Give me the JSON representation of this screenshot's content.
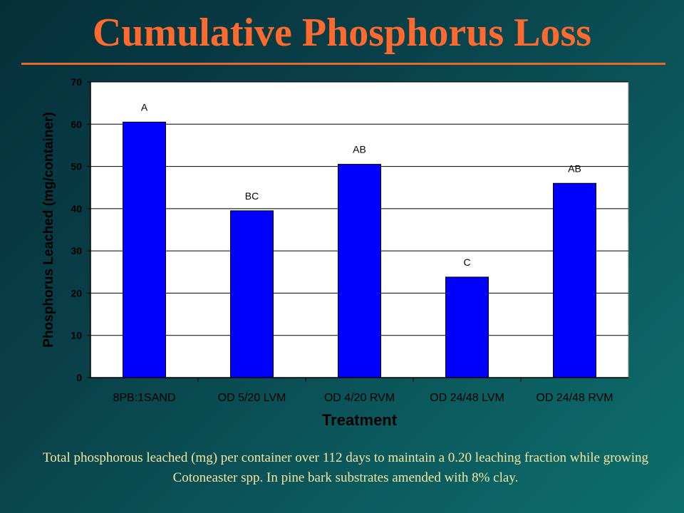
{
  "slide": {
    "title": "Cumulative Phosphorus Loss",
    "caption": "Total phosphorous leached (mg) per container over 112 days to maintain a 0.20 leaching fraction while growing Cotoneaster spp. In pine bark substrates amended with  8% clay."
  },
  "colors": {
    "title": "#ff6a2e",
    "rule": "#e86a2a",
    "caption": "#f5e6a0",
    "plot_bg": "#ffffff",
    "bar": "#0000ff",
    "axis_text": "#000000"
  },
  "chart_data": {
    "type": "bar",
    "categories": [
      "8PB:1SAND",
      "OD 5/20 LVM",
      "OD 4/20 RVM",
      "OD 24/48 LVM",
      "OD 24/48 RVM"
    ],
    "values": [
      60.5,
      39.5,
      50.5,
      23.8,
      46
    ],
    "data_labels": [
      "A",
      "BC",
      "AB",
      "C",
      "AB"
    ],
    "xlabel": "Treatment",
    "ylabel": "Phosphorus Leached (mg/container)",
    "ylim": [
      0,
      70
    ],
    "yticks": [
      0,
      10,
      20,
      30,
      40,
      50,
      60,
      70
    ],
    "grid": true,
    "legend": "none"
  }
}
